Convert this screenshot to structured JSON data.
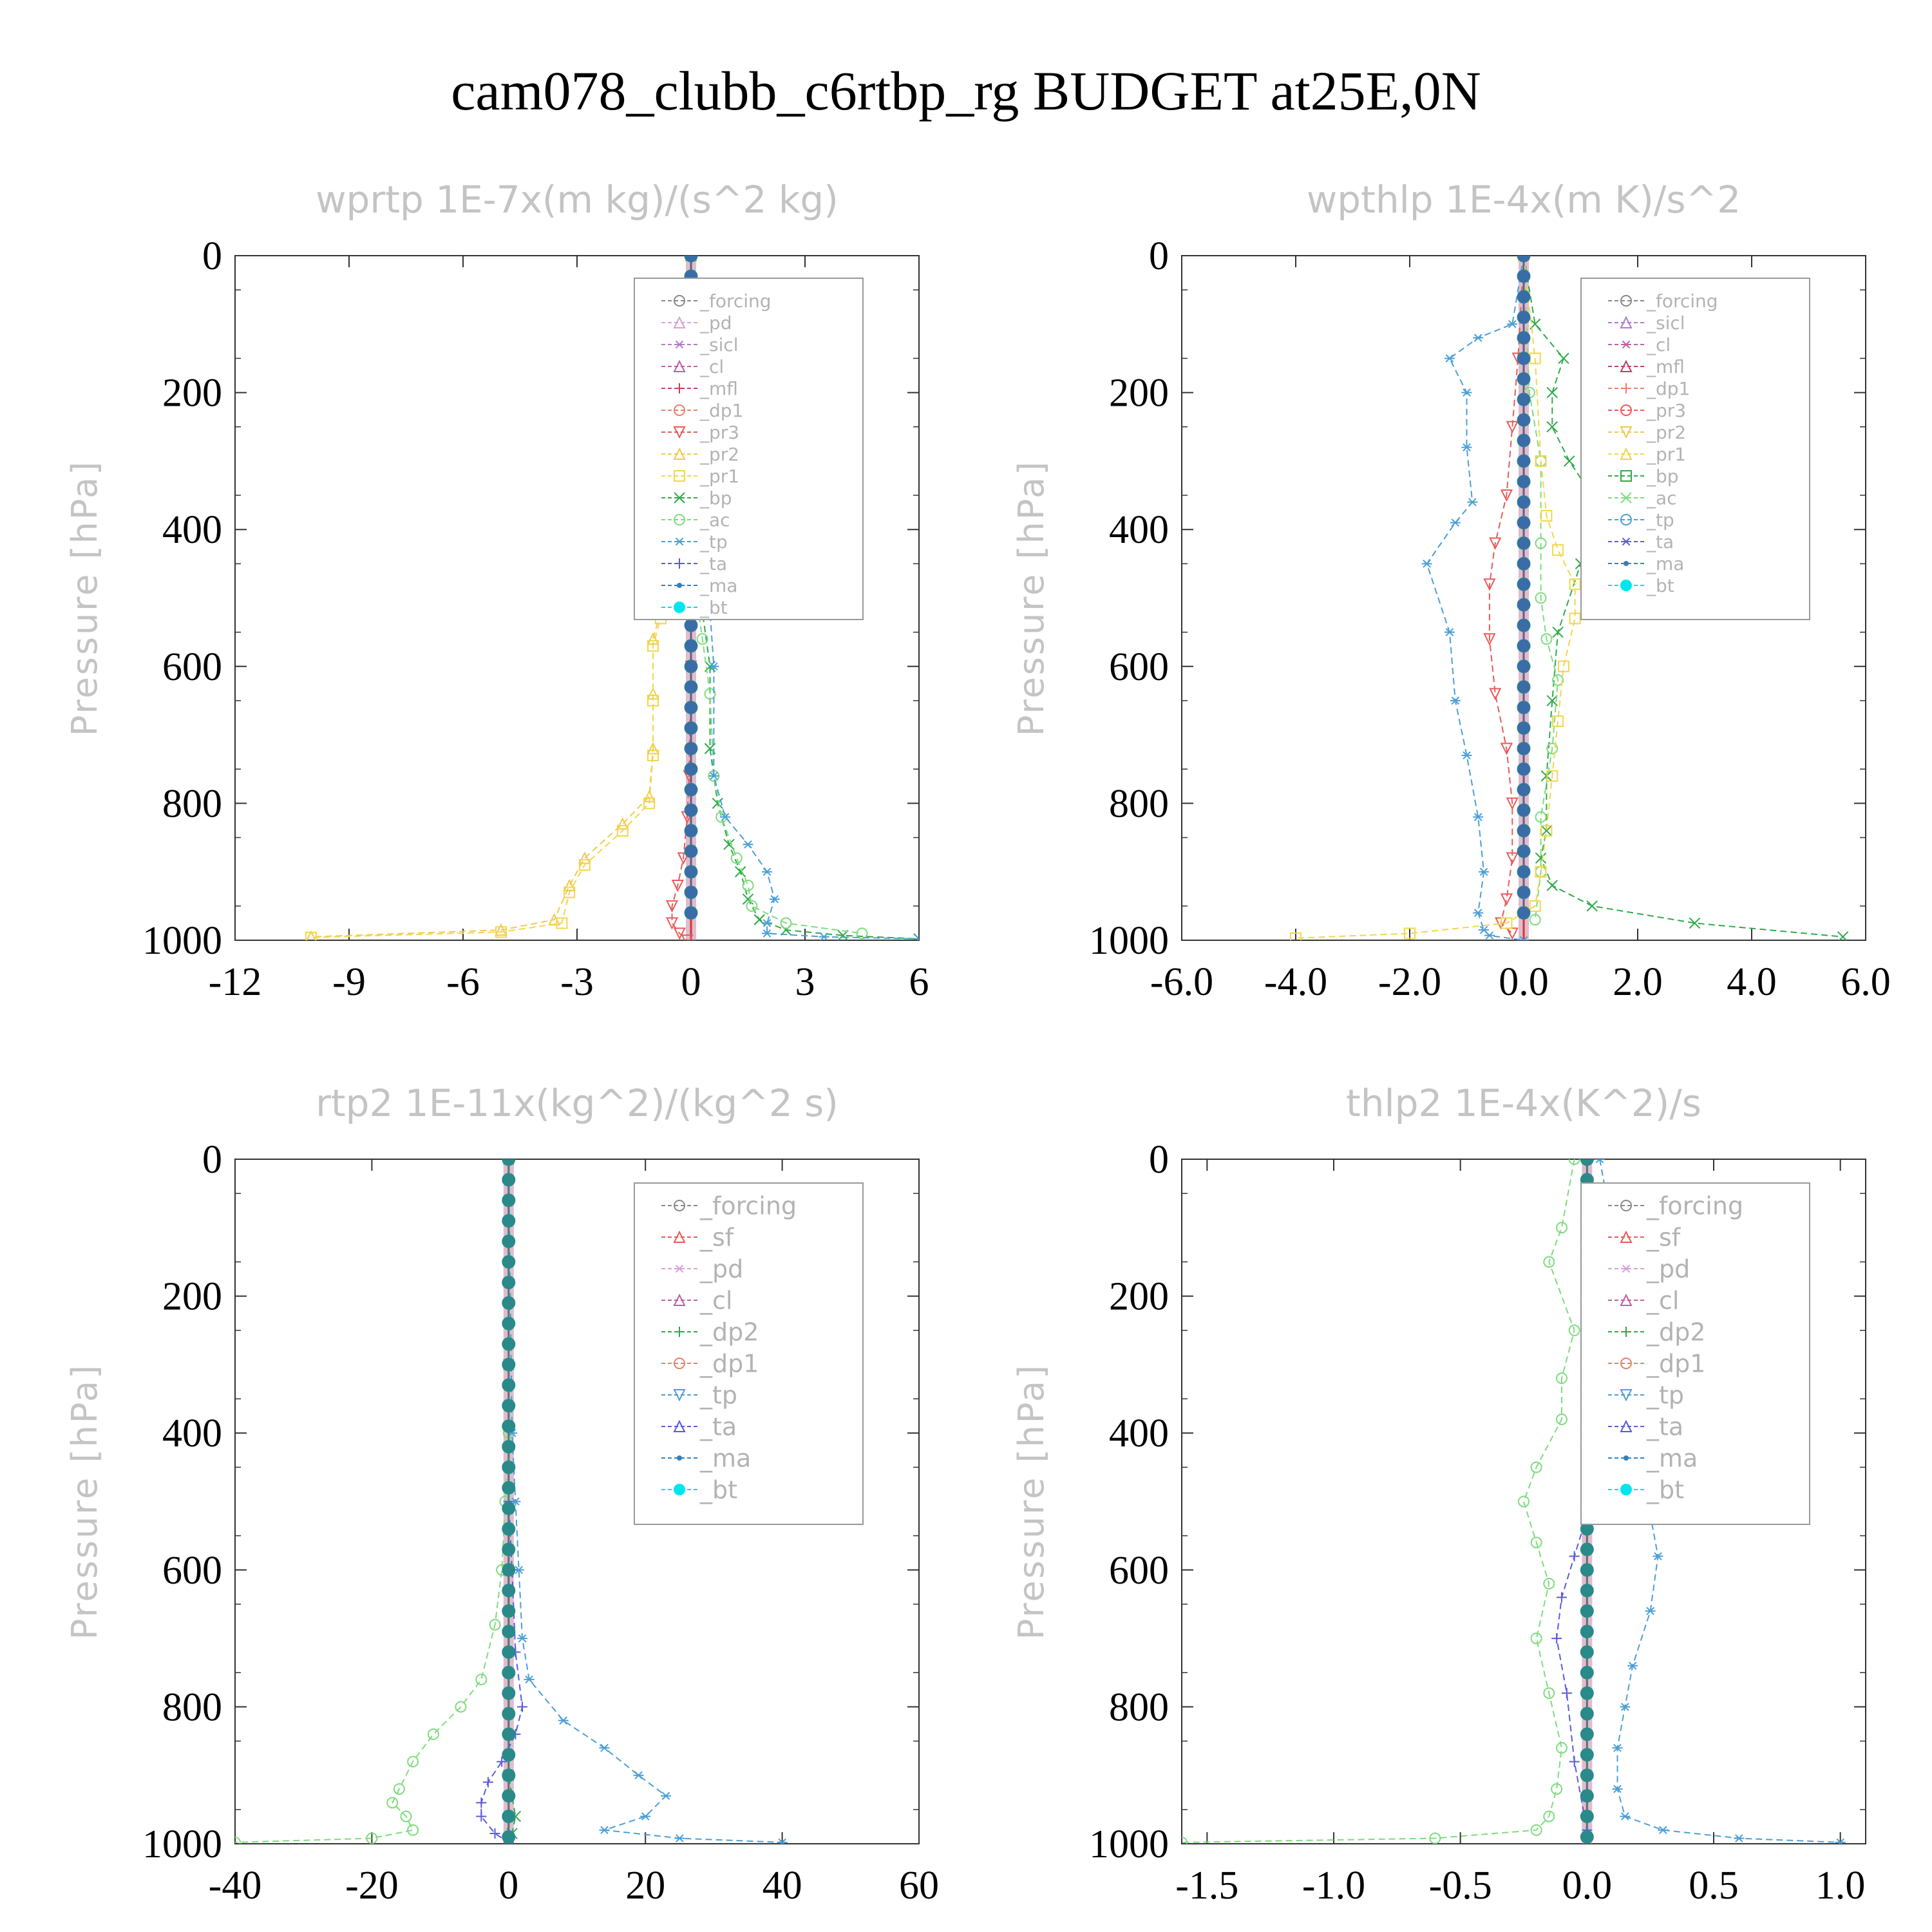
{
  "page_title": "cam078_clubb_c6rtbp_rg  BUDGET at25E,0N",
  "chart_data": [
    {
      "type": "line",
      "title": "wprtp   1E-7x(m kg)/(s^2 kg)",
      "ylabel": "Pressure [hPa]",
      "xlim": [
        -12,
        6
      ],
      "ylim": [
        1000,
        0
      ],
      "x_ticks": [
        "-12",
        "-9",
        "-6",
        "-3",
        "0",
        "3",
        "6"
      ],
      "y_ticks": [
        "0",
        "200",
        "400",
        "600",
        "800",
        "1000"
      ],
      "legend_position": "upper-right",
      "legend": [
        "_forcing",
        "_pd",
        "_sicl",
        "_cl",
        "_mfl",
        "_dp1",
        "_pr3",
        "_pr2",
        "_pr1",
        "_bp",
        "_ac",
        "_tp",
        "_ta",
        "_ma",
        "_bt"
      ],
      "series": [
        {
          "name": "_pr2",
          "color": "#f2c94c",
          "marker": "triangle",
          "x": [
            0,
            0,
            0,
            -0.1,
            -0.3,
            -0.6,
            -0.8,
            -1.0,
            -1.0,
            -1.0,
            -1.1,
            -1.8,
            -2.8,
            -3.2,
            -3.6,
            -5,
            -10
          ],
          "y": [
            0,
            100,
            300,
            380,
            420,
            470,
            520,
            560,
            640,
            720,
            790,
            830,
            880,
            920,
            970,
            985,
            995
          ]
        },
        {
          "name": "_pr1",
          "color": "#f2d64b",
          "marker": "square",
          "x": [
            0,
            0,
            0,
            -0.1,
            -0.3,
            -0.6,
            -0.8,
            -1.0,
            -1.0,
            -1.0,
            -1.1,
            -1.8,
            -2.8,
            -3.2,
            -3.4,
            -5,
            -10
          ],
          "y": [
            0,
            100,
            300,
            385,
            430,
            480,
            530,
            570,
            650,
            730,
            800,
            840,
            890,
            930,
            975,
            988,
            996
          ]
        },
        {
          "name": "_pr3",
          "color": "#e85a5a",
          "marker": "triangle-down",
          "x": [
            0,
            0,
            0,
            -0.05,
            -0.1,
            -0.2,
            -0.35,
            -0.5,
            -0.5,
            -0.3,
            -0.1
          ],
          "y": [
            0,
            300,
            600,
            760,
            820,
            880,
            920,
            950,
            975,
            990,
            1000
          ]
        },
        {
          "name": "_bp",
          "color": "#2eaa4a",
          "marker": "x",
          "x": [
            0,
            0,
            0.05,
            0.3,
            0.5,
            0.5,
            0.7,
            1.0,
            1.3,
            1.5,
            1.8,
            2.5,
            4.0,
            6.0
          ],
          "y": [
            0,
            300,
            400,
            520,
            600,
            720,
            800,
            860,
            900,
            940,
            970,
            985,
            993,
            998
          ]
        },
        {
          "name": "_ac",
          "color": "#7ddc7d",
          "marker": "circle",
          "x": [
            0,
            0,
            0.1,
            0.3,
            0.5,
            0.6,
            0.8,
            1.2,
            1.5,
            1.6,
            2.5,
            4.5
          ],
          "y": [
            0,
            400,
            480,
            560,
            640,
            760,
            820,
            880,
            920,
            950,
            975,
            990
          ]
        },
        {
          "name": "_tp",
          "color": "#4a9fd8",
          "marker": "asterisk",
          "x": [
            0,
            0,
            0.2,
            0.5,
            0.6,
            0.6,
            0.9,
            1.5,
            2.0,
            2.2,
            2.0,
            2.0,
            3.5,
            6.0
          ],
          "y": [
            0,
            350,
            420,
            520,
            600,
            760,
            820,
            860,
            900,
            940,
            975,
            990,
            995,
            998
          ]
        },
        {
          "name": "_bt",
          "color": "#3a6ca8",
          "marker": "dot",
          "x": [
            0,
            0,
            0,
            0,
            0,
            0,
            0,
            0,
            0,
            0,
            0,
            0,
            0,
            0,
            0,
            0,
            0,
            0,
            0,
            0,
            0,
            0,
            0,
            0,
            0,
            0,
            0,
            0,
            0,
            0,
            0,
            0,
            0
          ],
          "y": [
            0,
            30,
            60,
            90,
            120,
            150,
            180,
            210,
            240,
            270,
            300,
            330,
            360,
            390,
            420,
            450,
            480,
            510,
            540,
            570,
            600,
            630,
            660,
            690,
            720,
            750,
            780,
            810,
            840,
            870,
            900,
            930,
            960
          ]
        }
      ]
    },
    {
      "type": "line",
      "title": "wpthlp   1E-4x(m K)/s^2",
      "ylabel": "Pressure [hPa]",
      "xlim": [
        -6,
        6
      ],
      "ylim": [
        1000,
        0
      ],
      "x_ticks": [
        "-6.0",
        "-4.0",
        "-2.0",
        "0.0",
        "2.0",
        "4.0",
        "6.0"
      ],
      "y_ticks": [
        "0",
        "200",
        "400",
        "600",
        "800",
        "1000"
      ],
      "legend_position": "upper-right",
      "legend": [
        "_forcing",
        "_sicl",
        "_cl",
        "_mfl",
        "_dp1",
        "_pr3",
        "_pr2",
        "_pr1",
        "_bp",
        "_ac",
        "_tp",
        "_ta",
        "_ma",
        "_bt"
      ],
      "series": [
        {
          "name": "_tp",
          "color": "#4a9fd8",
          "marker": "asterisk",
          "x": [
            0,
            -0.2,
            -0.8,
            -1.3,
            -1.0,
            -1.0,
            -0.9,
            -1.2,
            -1.7,
            -1.3,
            -1.2,
            -1.0,
            -0.8,
            -0.7,
            -0.8,
            -0.7,
            -0.6,
            0
          ],
          "y": [
            0,
            100,
            120,
            150,
            200,
            280,
            360,
            390,
            450,
            550,
            650,
            730,
            820,
            900,
            960,
            985,
            993,
            1000
          ]
        },
        {
          "name": "_bp",
          "color": "#2eaa4a",
          "marker": "x",
          "x": [
            0,
            0.2,
            0.7,
            0.5,
            0.5,
            0.8,
            1.2,
            1.0,
            0.6,
            0.5,
            0.4,
            0.4,
            0.3,
            0.5,
            1.2,
            3.0,
            5.6
          ],
          "y": [
            0,
            100,
            150,
            200,
            250,
            300,
            350,
            450,
            550,
            650,
            760,
            840,
            880,
            920,
            950,
            975,
            995
          ]
        },
        {
          "name": "_ac",
          "color": "#7ddc7d",
          "marker": "circle",
          "x": [
            0,
            0.1,
            0.3,
            0.3,
            0.3,
            0.4,
            0.6,
            0.5,
            0.3,
            0.3,
            0.2
          ],
          "y": [
            0,
            200,
            300,
            420,
            500,
            560,
            620,
            720,
            820,
            900,
            970
          ]
        },
        {
          "name": "_pr3",
          "color": "#e85a5a",
          "marker": "triangle-down",
          "x": [
            0,
            -0.1,
            -0.2,
            -0.3,
            -0.5,
            -0.6,
            -0.6,
            -0.5,
            -0.3,
            -0.2,
            -0.2,
            -0.3,
            -0.4,
            -0.2
          ],
          "y": [
            0,
            150,
            250,
            350,
            420,
            480,
            560,
            640,
            720,
            800,
            880,
            940,
            975,
            990
          ]
        },
        {
          "name": "_pr1",
          "color": "#f2d64b",
          "marker": "square",
          "x": [
            0,
            0.2,
            0.3,
            0.4,
            0.6,
            0.9,
            0.9,
            0.7,
            0.6,
            0.5,
            0.4,
            0.3,
            0.2,
            -0.3,
            -2.0,
            -4.0
          ],
          "y": [
            0,
            150,
            300,
            380,
            430,
            480,
            530,
            600,
            680,
            760,
            840,
            900,
            950,
            975,
            990,
            997
          ]
        },
        {
          "name": "_bt",
          "color": "#3a6ca8",
          "marker": "dot",
          "x": [
            0,
            0,
            0,
            0,
            0,
            0,
            0,
            0,
            0,
            0,
            0,
            0,
            0,
            0,
            0,
            0,
            0,
            0,
            0,
            0,
            0,
            0,
            0,
            0,
            0,
            0,
            0,
            0,
            0,
            0,
            0,
            0,
            0
          ],
          "y": [
            0,
            30,
            60,
            90,
            120,
            150,
            180,
            210,
            240,
            270,
            300,
            330,
            360,
            390,
            420,
            450,
            480,
            510,
            540,
            570,
            600,
            630,
            660,
            690,
            720,
            750,
            780,
            810,
            840,
            870,
            900,
            930,
            960
          ]
        }
      ]
    },
    {
      "type": "line",
      "title": "rtp2   1E-11x(kg^2)/(kg^2 s)",
      "ylabel": "Pressure [hPa]",
      "xlim": [
        -40,
        60
      ],
      "ylim": [
        1000,
        0
      ],
      "x_ticks": [
        "-40",
        "-20",
        "0",
        "20",
        "40",
        "60"
      ],
      "y_ticks": [
        "0",
        "200",
        "400",
        "600",
        "800",
        "1000"
      ],
      "legend_position": "upper-right",
      "legend": [
        "_forcing",
        "_sf",
        "_pd",
        "_cl",
        "_dp2",
        "_dp1",
        "_tp",
        "_ta",
        "_ma",
        "_bt"
      ],
      "series": [
        {
          "name": "_dp1",
          "color": "#7ddc7d",
          "marker": "circle",
          "x": [
            0,
            0,
            -0.5,
            -1,
            -2,
            -4,
            -7,
            -11,
            -14,
            -16,
            -17,
            -15,
            -14,
            -20,
            -40
          ],
          "y": [
            0,
            400,
            500,
            600,
            680,
            760,
            800,
            840,
            880,
            920,
            940,
            960,
            980,
            992,
            998
          ]
        },
        {
          "name": "_tp",
          "color": "#4a9fd8",
          "marker": "asterisk",
          "x": [
            0,
            0.5,
            1,
            1.5,
            2,
            3,
            8,
            14,
            19,
            23,
            20,
            14,
            25,
            40
          ],
          "y": [
            0,
            400,
            500,
            600,
            700,
            760,
            820,
            860,
            900,
            930,
            960,
            980,
            992,
            998
          ]
        },
        {
          "name": "_ta",
          "color": "#5a5ae0",
          "marker": "plus",
          "x": [
            0,
            0,
            0.5,
            1,
            2,
            1,
            -1,
            -3,
            -4,
            -4,
            -2,
            0
          ],
          "y": [
            0,
            500,
            600,
            720,
            800,
            840,
            880,
            910,
            940,
            960,
            985,
            998
          ]
        },
        {
          "name": "_dp2",
          "color": "#2eaa4a",
          "marker": "x",
          "x": [
            0,
            0,
            0,
            0,
            1,
            0.5,
            0
          ],
          "y": [
            0,
            300,
            600,
            900,
            960,
            985,
            1000
          ]
        },
        {
          "name": "_bt",
          "color": "#2a8a8a",
          "marker": "dot",
          "x": [
            0,
            0,
            0,
            0,
            0,
            0,
            0,
            0,
            0,
            0,
            0,
            0,
            0,
            0,
            0,
            0,
            0,
            0,
            0,
            0,
            0,
            0,
            0,
            0,
            0,
            0,
            0,
            0,
            0,
            0,
            0,
            0,
            0,
            0
          ],
          "y": [
            0,
            30,
            60,
            90,
            120,
            150,
            180,
            210,
            240,
            270,
            300,
            330,
            360,
            390,
            420,
            450,
            480,
            510,
            540,
            570,
            600,
            630,
            660,
            690,
            720,
            750,
            780,
            810,
            840,
            870,
            900,
            930,
            960,
            990
          ]
        }
      ]
    },
    {
      "type": "line",
      "title": "thlp2   1E-4x(K^2)/s",
      "ylabel": "Pressure [hPa]",
      "xlim": [
        -1.6,
        1.1
      ],
      "ylim": [
        1000,
        0
      ],
      "x_ticks": [
        "-1.5",
        "-1.0",
        "-0.5",
        "0.0",
        "0.5",
        "1.0"
      ],
      "x_tick_values": [
        -1.5,
        -1.0,
        -0.5,
        0.0,
        0.5,
        1.0
      ],
      "y_ticks": [
        "0",
        "200",
        "400",
        "600",
        "800",
        "1000"
      ],
      "legend_position": "upper-right",
      "legend": [
        "_forcing",
        "_sf",
        "_pd",
        "_cl",
        "_dp2",
        "_dp1",
        "_tp",
        "_ta",
        "_ma",
        "_bt"
      ],
      "series": [
        {
          "name": "_dp1",
          "color": "#7ddc7d",
          "marker": "circle",
          "x": [
            -0.05,
            -0.1,
            -0.15,
            -0.05,
            -0.1,
            -0.1,
            -0.2,
            -0.25,
            -0.2,
            -0.15,
            -0.2,
            -0.15,
            -0.1,
            -0.12,
            -0.15,
            -0.2,
            -0.6,
            -1.6
          ],
          "y": [
            0,
            100,
            150,
            250,
            320,
            380,
            450,
            500,
            560,
            620,
            700,
            780,
            860,
            920,
            960,
            980,
            992,
            998
          ]
        },
        {
          "name": "_tp",
          "color": "#4a9fd8",
          "marker": "asterisk",
          "x": [
            0.05,
            0.1,
            0.15,
            0.1,
            0.05,
            0.1,
            0.2,
            0.25,
            0.28,
            0.25,
            0.18,
            0.15,
            0.12,
            0.12,
            0.15,
            0.3,
            0.6,
            1.0
          ],
          "y": [
            0,
            100,
            150,
            250,
            320,
            400,
            460,
            520,
            580,
            660,
            740,
            800,
            860,
            920,
            960,
            980,
            992,
            998
          ]
        },
        {
          "name": "_ta",
          "color": "#5a5ae0",
          "marker": "plus",
          "x": [
            0,
            0.02,
            0.05,
            0.1,
            0.15,
            0.1,
            0,
            -0.05,
            -0.1,
            -0.12,
            -0.08,
            -0.05,
            0
          ],
          "y": [
            0,
            250,
            330,
            380,
            420,
            470,
            520,
            580,
            640,
            700,
            780,
            880,
            980
          ]
        },
        {
          "name": "_bt",
          "color": "#2a8a8a",
          "marker": "dot",
          "x": [
            0,
            0,
            0,
            0,
            0,
            0,
            0,
            0,
            0,
            0,
            0,
            0,
            0,
            0,
            0,
            0,
            0,
            0,
            0,
            0,
            0,
            0,
            0,
            0,
            0,
            0,
            0,
            0,
            0,
            0,
            0,
            0,
            0,
            0
          ],
          "y": [
            0,
            30,
            60,
            90,
            120,
            150,
            180,
            210,
            240,
            270,
            300,
            330,
            360,
            390,
            420,
            450,
            480,
            510,
            540,
            570,
            600,
            630,
            660,
            690,
            720,
            750,
            780,
            810,
            840,
            870,
            900,
            930,
            960,
            990
          ]
        }
      ]
    }
  ]
}
